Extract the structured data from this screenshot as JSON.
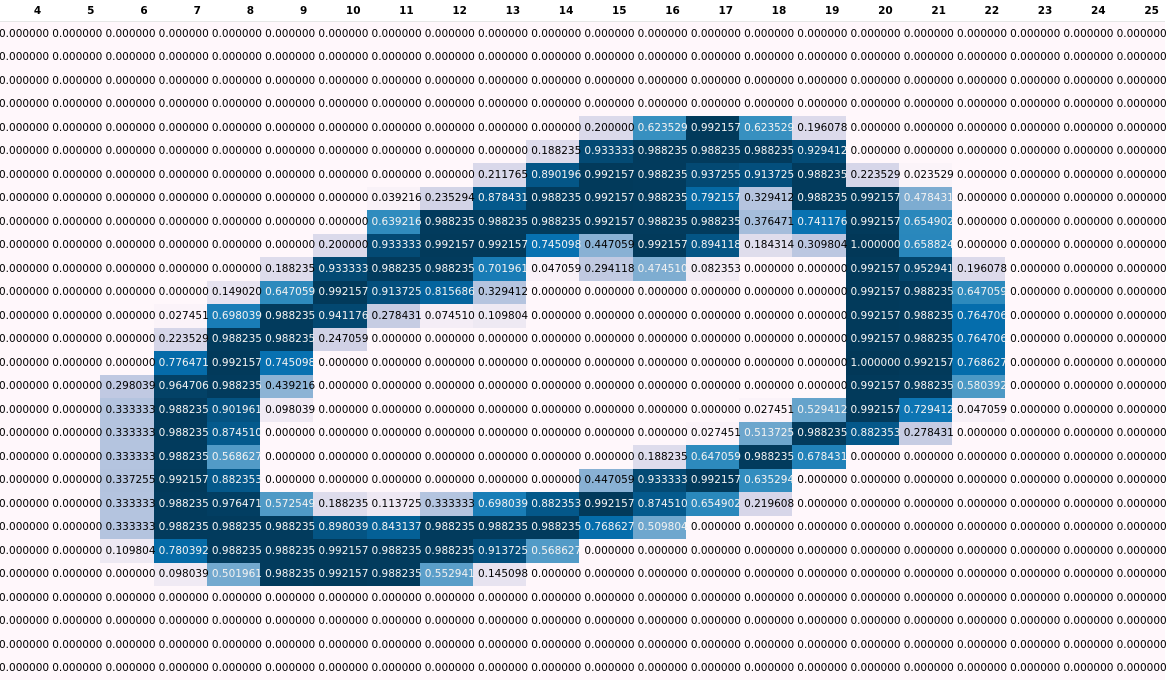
{
  "table": {
    "columns": [
      "4",
      "5",
      "6",
      "7",
      "8",
      "9",
      "10",
      "11",
      "12",
      "13",
      "14",
      "15",
      "16",
      "17",
      "18",
      "19",
      "20",
      "21",
      "22",
      "23",
      "24",
      "25"
    ],
    "rows": [
      [
        "0.000000",
        "0.000000",
        "0.000000",
        "0.000000",
        "0.000000",
        "0.000000",
        "0.000000",
        "0.000000",
        "0.000000",
        "0.000000",
        "0.000000",
        "0.000000",
        "0.000000",
        "0.000000",
        "0.000000",
        "0.000000",
        "0.000000",
        "0.000000",
        "0.000000",
        "0.000000",
        "0.000000",
        "0.000000"
      ],
      [
        "0.000000",
        "0.000000",
        "0.000000",
        "0.000000",
        "0.000000",
        "0.000000",
        "0.000000",
        "0.000000",
        "0.000000",
        "0.000000",
        "0.000000",
        "0.000000",
        "0.000000",
        "0.000000",
        "0.000000",
        "0.000000",
        "0.000000",
        "0.000000",
        "0.000000",
        "0.000000",
        "0.000000",
        "0.000000"
      ],
      [
        "0.000000",
        "0.000000",
        "0.000000",
        "0.000000",
        "0.000000",
        "0.000000",
        "0.000000",
        "0.000000",
        "0.000000",
        "0.000000",
        "0.000000",
        "0.000000",
        "0.000000",
        "0.000000",
        "0.000000",
        "0.000000",
        "0.000000",
        "0.000000",
        "0.000000",
        "0.000000",
        "0.000000",
        "0.000000"
      ],
      [
        "0.000000",
        "0.000000",
        "0.000000",
        "0.000000",
        "0.000000",
        "0.000000",
        "0.000000",
        "0.000000",
        "0.000000",
        "0.000000",
        "0.000000",
        "0.000000",
        "0.000000",
        "0.000000",
        "0.000000",
        "0.000000",
        "0.000000",
        "0.000000",
        "0.000000",
        "0.000000",
        "0.000000",
        "0.000000"
      ],
      [
        "0.000000",
        "0.000000",
        "0.000000",
        "0.000000",
        "0.000000",
        "0.000000",
        "0.000000",
        "0.000000",
        "0.000000",
        "0.000000",
        "0.000000",
        "0.200000",
        "0.623529",
        "0.992157",
        "0.623529",
        "0.196078",
        "0.000000",
        "0.000000",
        "0.000000",
        "0.000000",
        "0.000000",
        "0.000000"
      ],
      [
        "0.000000",
        "0.000000",
        "0.000000",
        "0.000000",
        "0.000000",
        "0.000000",
        "0.000000",
        "0.000000",
        "0.000000",
        "0.000000",
        "0.188235",
        "0.933333",
        "0.988235",
        "0.988235",
        "0.988235",
        "0.929412",
        "0.000000",
        "0.000000",
        "0.000000",
        "0.000000",
        "0.000000",
        "0.000000"
      ],
      [
        "0.000000",
        "0.000000",
        "0.000000",
        "0.000000",
        "0.000000",
        "0.000000",
        "0.000000",
        "0.000000",
        "0.000000",
        "0.211765",
        "0.890196",
        "0.992157",
        "0.988235",
        "0.937255",
        "0.913725",
        "0.988235",
        "0.223529",
        "0.023529",
        "0.000000",
        "0.000000",
        "0.000000",
        "0.000000"
      ],
      [
        "0.000000",
        "0.000000",
        "0.000000",
        "0.000000",
        "0.000000",
        "0.000000",
        "0.000000",
        "0.039216",
        "0.235294",
        "0.878431",
        "0.988235",
        "0.992157",
        "0.988235",
        "0.792157",
        "0.329412",
        "0.988235",
        "0.992157",
        "0.478431",
        "0.000000",
        "0.000000",
        "0.000000",
        "0.000000"
      ],
      [
        "0.000000",
        "0.000000",
        "0.000000",
        "0.000000",
        "0.000000",
        "0.000000",
        "0.000000",
        "0.639216",
        "0.988235",
        "0.988235",
        "0.988235",
        "0.992157",
        "0.988235",
        "0.988235",
        "0.376471",
        "0.741176",
        "0.992157",
        "0.654902",
        "0.000000",
        "0.000000",
        "0.000000",
        "0.000000"
      ],
      [
        "0.000000",
        "0.000000",
        "0.000000",
        "0.000000",
        "0.000000",
        "0.000000",
        "0.200000",
        "0.933333",
        "0.992157",
        "0.992157",
        "0.745098",
        "0.447059",
        "0.992157",
        "0.894118",
        "0.184314",
        "0.309804",
        "1.000000",
        "0.658824",
        "0.000000",
        "0.000000",
        "0.000000",
        "0.000000"
      ],
      [
        "0.000000",
        "0.000000",
        "0.000000",
        "0.000000",
        "0.000000",
        "0.188235",
        "0.933333",
        "0.988235",
        "0.988235",
        "0.701961",
        "0.047059",
        "0.294118",
        "0.474510",
        "0.082353",
        "0.000000",
        "0.000000",
        "0.992157",
        "0.952941",
        "0.196078",
        "0.000000",
        "0.000000",
        "0.000000"
      ],
      [
        "0.000000",
        "0.000000",
        "0.000000",
        "0.000000",
        "0.149020",
        "0.647059",
        "0.992157",
        "0.913725",
        "0.815686",
        "0.329412",
        "0.000000",
        "0.000000",
        "0.000000",
        "0.000000",
        "0.000000",
        "0.000000",
        "0.992157",
        "0.988235",
        "0.647059",
        "0.000000",
        "0.000000",
        "0.000000"
      ],
      [
        "0.000000",
        "0.000000",
        "0.000000",
        "0.027451",
        "0.698039",
        "0.988235",
        "0.941176",
        "0.278431",
        "0.074510",
        "0.109804",
        "0.000000",
        "0.000000",
        "0.000000",
        "0.000000",
        "0.000000",
        "0.000000",
        "0.992157",
        "0.988235",
        "0.764706",
        "0.000000",
        "0.000000",
        "0.000000"
      ],
      [
        "0.000000",
        "0.000000",
        "0.000000",
        "0.223529",
        "0.988235",
        "0.988235",
        "0.247059",
        "0.000000",
        "0.000000",
        "0.000000",
        "0.000000",
        "0.000000",
        "0.000000",
        "0.000000",
        "0.000000",
        "0.000000",
        "0.992157",
        "0.988235",
        "0.764706",
        "0.000000",
        "0.000000",
        "0.000000"
      ],
      [
        "0.000000",
        "0.000000",
        "0.000000",
        "0.776471",
        "0.992157",
        "0.745098",
        "0.000000",
        "0.000000",
        "0.000000",
        "0.000000",
        "0.000000",
        "0.000000",
        "0.000000",
        "0.000000",
        "0.000000",
        "0.000000",
        "1.000000",
        "0.992157",
        "0.768627",
        "0.000000",
        "0.000000",
        "0.000000"
      ],
      [
        "0.000000",
        "0.000000",
        "0.298039",
        "0.964706",
        "0.988235",
        "0.439216",
        "0.000000",
        "0.000000",
        "0.000000",
        "0.000000",
        "0.000000",
        "0.000000",
        "0.000000",
        "0.000000",
        "0.000000",
        "0.000000",
        "0.992157",
        "0.988235",
        "0.580392",
        "0.000000",
        "0.000000",
        "0.000000"
      ],
      [
        "0.000000",
        "0.000000",
        "0.333333",
        "0.988235",
        "0.901961",
        "0.098039",
        "0.000000",
        "0.000000",
        "0.000000",
        "0.000000",
        "0.000000",
        "0.000000",
        "0.000000",
        "0.000000",
        "0.027451",
        "0.529412",
        "0.992157",
        "0.729412",
        "0.047059",
        "0.000000",
        "0.000000",
        "0.000000"
      ],
      [
        "0.000000",
        "0.000000",
        "0.333333",
        "0.988235",
        "0.874510",
        "0.000000",
        "0.000000",
        "0.000000",
        "0.000000",
        "0.000000",
        "0.000000",
        "0.000000",
        "0.000000",
        "0.027451",
        "0.513725",
        "0.988235",
        "0.882353",
        "0.278431",
        "0.000000",
        "0.000000",
        "0.000000",
        "0.000000"
      ],
      [
        "0.000000",
        "0.000000",
        "0.333333",
        "0.988235",
        "0.568627",
        "0.000000",
        "0.000000",
        "0.000000",
        "0.000000",
        "0.000000",
        "0.000000",
        "0.000000",
        "0.188235",
        "0.647059",
        "0.988235",
        "0.678431",
        "0.000000",
        "0.000000",
        "0.000000",
        "0.000000",
        "0.000000",
        "0.000000"
      ],
      [
        "0.000000",
        "0.000000",
        "0.337255",
        "0.992157",
        "0.882353",
        "0.000000",
        "0.000000",
        "0.000000",
        "0.000000",
        "0.000000",
        "0.000000",
        "0.447059",
        "0.933333",
        "0.992157",
        "0.635294",
        "0.000000",
        "0.000000",
        "0.000000",
        "0.000000",
        "0.000000",
        "0.000000",
        "0.000000"
      ],
      [
        "0.000000",
        "0.000000",
        "0.333333",
        "0.988235",
        "0.976471",
        "0.572549",
        "0.188235",
        "0.113725",
        "0.333333",
        "0.698039",
        "0.882353",
        "0.992157",
        "0.874510",
        "0.654902",
        "0.219608",
        "0.000000",
        "0.000000",
        "0.000000",
        "0.000000",
        "0.000000",
        "0.000000",
        "0.000000"
      ],
      [
        "0.000000",
        "0.000000",
        "0.333333",
        "0.988235",
        "0.988235",
        "0.988235",
        "0.898039",
        "0.843137",
        "0.988235",
        "0.988235",
        "0.988235",
        "0.768627",
        "0.509804",
        "0.000000",
        "0.000000",
        "0.000000",
        "0.000000",
        "0.000000",
        "0.000000",
        "0.000000",
        "0.000000",
        "0.000000"
      ],
      [
        "0.000000",
        "0.000000",
        "0.109804",
        "0.780392",
        "0.988235",
        "0.988235",
        "0.992157",
        "0.988235",
        "0.988235",
        "0.913725",
        "0.568627",
        "0.000000",
        "0.000000",
        "0.000000",
        "0.000000",
        "0.000000",
        "0.000000",
        "0.000000",
        "0.000000",
        "0.000000",
        "0.000000",
        "0.000000"
      ],
      [
        "0.000000",
        "0.000000",
        "0.000000",
        "0.098039",
        "0.501961",
        "0.988235",
        "0.992157",
        "0.988235",
        "0.552941",
        "0.145098",
        "0.000000",
        "0.000000",
        "0.000000",
        "0.000000",
        "0.000000",
        "0.000000",
        "0.000000",
        "0.000000",
        "0.000000",
        "0.000000",
        "0.000000",
        "0.000000"
      ],
      [
        "0.000000",
        "0.000000",
        "0.000000",
        "0.000000",
        "0.000000",
        "0.000000",
        "0.000000",
        "0.000000",
        "0.000000",
        "0.000000",
        "0.000000",
        "0.000000",
        "0.000000",
        "0.000000",
        "0.000000",
        "0.000000",
        "0.000000",
        "0.000000",
        "0.000000",
        "0.000000",
        "0.000000",
        "0.000000"
      ],
      [
        "0.000000",
        "0.000000",
        "0.000000",
        "0.000000",
        "0.000000",
        "0.000000",
        "0.000000",
        "0.000000",
        "0.000000",
        "0.000000",
        "0.000000",
        "0.000000",
        "0.000000",
        "0.000000",
        "0.000000",
        "0.000000",
        "0.000000",
        "0.000000",
        "0.000000",
        "0.000000",
        "0.000000",
        "0.000000"
      ],
      [
        "0.000000",
        "0.000000",
        "0.000000",
        "0.000000",
        "0.000000",
        "0.000000",
        "0.000000",
        "0.000000",
        "0.000000",
        "0.000000",
        "0.000000",
        "0.000000",
        "0.000000",
        "0.000000",
        "0.000000",
        "0.000000",
        "0.000000",
        "0.000000",
        "0.000000",
        "0.000000",
        "0.000000",
        "0.000000"
      ],
      [
        "0.000000",
        "0.000000",
        "0.000000",
        "0.000000",
        "0.000000",
        "0.000000",
        "0.000000",
        "0.000000",
        "0.000000",
        "0.000000",
        "0.000000",
        "0.000000",
        "0.000000",
        "0.000000",
        "0.000000",
        "0.000000",
        "0.000000",
        "0.000000",
        "0.000000",
        "0.000000",
        "0.000000",
        "0.000000"
      ]
    ]
  }
}
